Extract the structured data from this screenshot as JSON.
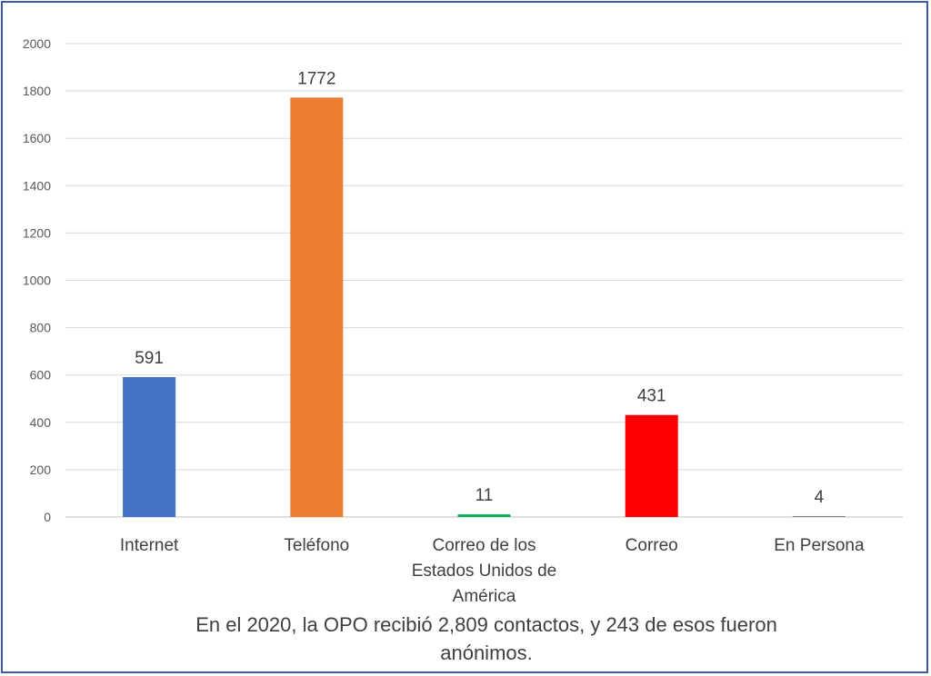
{
  "chart_data": {
    "type": "bar",
    "categories": [
      "Internet",
      "Teléfono",
      "Correo de los Estados Unidos de América",
      "Correo",
      "En Persona"
    ],
    "category_lines": [
      [
        "Internet"
      ],
      [
        "Teléfono"
      ],
      [
        "Correo de los",
        "Estados Unidos de",
        "América"
      ],
      [
        "Correo"
      ],
      [
        "En Persona"
      ]
    ],
    "values": [
      591,
      1772,
      11,
      431,
      4
    ],
    "colors": [
      "#4472c4",
      "#ed7d31",
      "#00b050",
      "#ff0000",
      "#7f7f7f"
    ],
    "ylim": [
      0,
      2000
    ],
    "yticks": [
      0,
      200,
      400,
      600,
      800,
      1000,
      1200,
      1400,
      1600,
      1800,
      2000
    ],
    "grid": true,
    "title": "",
    "xlabel": "",
    "ylabel": ""
  },
  "caption": {
    "line1": "En el 2020, la OPO recibió 2,809 contactos, y 243 de esos fueron",
    "line2": "anónimos."
  }
}
